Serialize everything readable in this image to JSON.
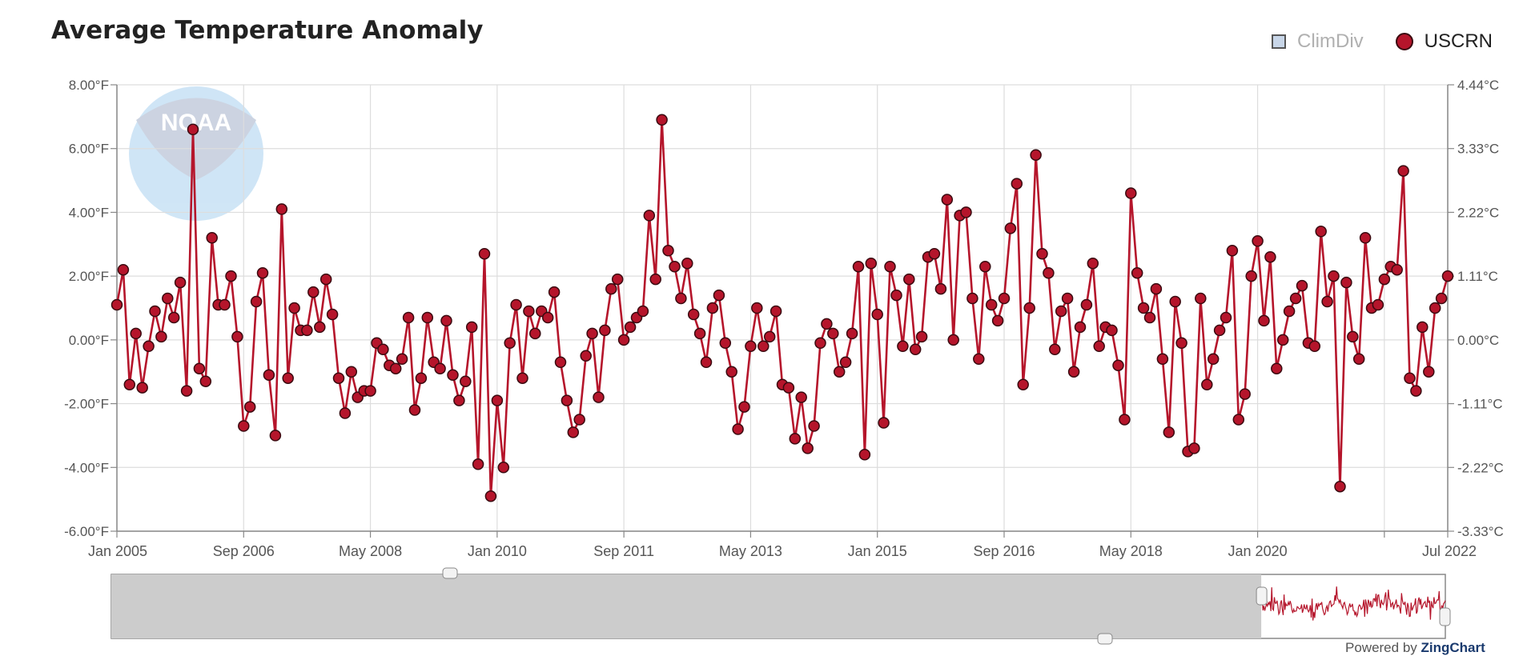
{
  "title": "Average Temperature Anomaly",
  "legend": [
    {
      "label": "ClimDiv",
      "shape": "square",
      "color": "#c8d6e8",
      "active": false
    },
    {
      "label": "USCRN",
      "shape": "circle",
      "color": "#b5152b",
      "active": true
    }
  ],
  "watermark": {
    "text": "NOAA"
  },
  "credit": {
    "prefix": "Powered by",
    "brand": "ZingChart"
  },
  "chart_data": {
    "type": "line",
    "x_start": "Jan 2005",
    "x_end": "Jul 2022",
    "series": [
      {
        "name": "USCRN",
        "color": "#b5152b",
        "values": [
          1.1,
          2.2,
          -1.4,
          0.2,
          -1.5,
          -0.2,
          0.9,
          0.1,
          1.3,
          0.7,
          1.8,
          -1.6,
          6.6,
          -0.9,
          -1.3,
          3.2,
          1.1,
          1.1,
          2.0,
          0.1,
          -2.7,
          -2.1,
          1.2,
          2.1,
          -1.1,
          -3.0,
          4.1,
          -1.2,
          1.0,
          0.3,
          0.3,
          1.5,
          0.4,
          1.9,
          0.8,
          -1.2,
          -2.3,
          -1.0,
          -1.8,
          -1.6,
          -1.6,
          -0.1,
          -0.3,
          -0.8,
          -0.9,
          -0.6,
          0.7,
          -2.2,
          -1.2,
          0.7,
          -0.7,
          -0.9,
          0.6,
          -1.1,
          -1.9,
          -1.3,
          0.4,
          -3.9,
          2.7,
          -4.9,
          -1.9,
          -4.0,
          -0.1,
          1.1,
          -1.2,
          0.9,
          0.2,
          0.9,
          0.7,
          1.5,
          -0.7,
          -1.9,
          -2.9,
          -2.5,
          -0.5,
          0.2,
          -1.8,
          0.3,
          1.6,
          1.9,
          0.0,
          0.4,
          0.7,
          0.9,
          3.9,
          1.9,
          6.9,
          2.8,
          2.3,
          1.3,
          2.4,
          0.8,
          0.2,
          -0.7,
          1.0,
          1.4,
          -0.1,
          -1.0,
          -2.8,
          -2.1,
          -0.2,
          1.0,
          -0.2,
          0.1,
          0.9,
          -1.4,
          -1.5,
          -3.1,
          -1.8,
          -3.4,
          -2.7,
          -0.1,
          0.5,
          0.2,
          -1.0,
          -0.7,
          0.2,
          2.3,
          -3.6,
          2.4,
          0.8,
          -2.6,
          2.3,
          1.4,
          -0.2,
          1.9,
          -0.3,
          0.1,
          2.6,
          2.7,
          1.6,
          4.4,
          0.0,
          3.9,
          4.0,
          1.3,
          -0.6,
          2.3,
          1.1,
          0.6,
          1.3,
          3.5,
          4.9,
          -1.4,
          1.0,
          5.8,
          2.7,
          2.1,
          -0.3,
          0.9,
          1.3,
          -1.0,
          0.4,
          1.1,
          2.4,
          -0.2,
          0.4,
          0.3,
          -0.8,
          -2.5,
          4.6,
          2.1,
          1.0,
          0.7,
          1.6,
          -0.6,
          -2.9,
          1.2,
          -0.1,
          -3.5,
          -3.4,
          1.3,
          -1.4,
          -0.6,
          0.3,
          0.7,
          2.8,
          -2.5,
          -1.7,
          2.0,
          3.1,
          0.6,
          2.6,
          -0.9,
          0.0,
          0.9,
          1.3,
          1.7,
          -0.1,
          -0.2,
          3.4,
          1.2,
          2.0,
          -4.6,
          1.8,
          0.1,
          -0.6,
          3.2,
          1.0,
          1.1,
          1.9,
          2.3,
          2.2,
          5.3,
          -1.2,
          -1.6,
          0.4,
          -1.0,
          1.0,
          1.3,
          2.0
        ]
      }
    ],
    "y_left": {
      "min": -6,
      "max": 8,
      "step": 2,
      "tick_labels": [
        "-6.00°F",
        "-4.00°F",
        "-2.00°F",
        "0.00°F",
        "2.00°F",
        "4.00°F",
        "6.00°F",
        "8.00°F"
      ]
    },
    "y_right": {
      "tick_labels": [
        "-3.33°C",
        "-2.22°C",
        "-1.11°C",
        "0.00°C",
        "1.11°C",
        "2.22°C",
        "3.33°C",
        "4.44°C"
      ]
    },
    "x_ticks": [
      {
        "label": "Jan 2005",
        "index": 0
      },
      {
        "label": "Sep 2006",
        "index": 20
      },
      {
        "label": "May 2008",
        "index": 40
      },
      {
        "label": "Jan 2010",
        "index": 60
      },
      {
        "label": "Sep 2011",
        "index": 80
      },
      {
        "label": "May 2013",
        "index": 100
      },
      {
        "label": "Jan 2015",
        "index": 120
      },
      {
        "label": "Sep 2016",
        "index": 140
      },
      {
        "label": "May 2018",
        "index": 160
      },
      {
        "label": "Jan 2020",
        "index": 180
      },
      {
        "label": "",
        "index": 200
      },
      {
        "label": "Jul 2022",
        "index": 210
      }
    ],
    "grid": true,
    "legend_position": "top-right",
    "zoom_preview": {
      "start_fraction": 0.862,
      "end_fraction": 1.0
    }
  }
}
